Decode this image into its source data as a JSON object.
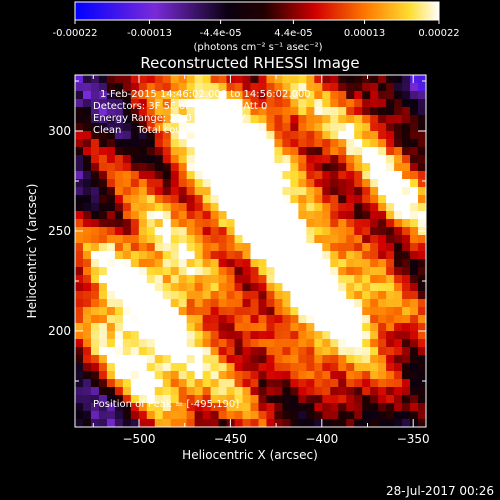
{
  "colorbar": {
    "tick_labels": [
      "-0.00022",
      "-0.00013",
      "-4.4e-05",
      "4.4e-05",
      "0.00013",
      "0.00022"
    ],
    "tick_values": [
      -0.00022,
      -0.00013,
      -4.4e-05,
      4.4e-05,
      0.00013,
      0.00022
    ],
    "range": [
      -0.00022,
      0.00022
    ],
    "unit_label": "(photons cm⁻² s⁻¹ asec⁻²)",
    "colormap": "blue-purple-black-red-orange-yellow-white"
  },
  "chart_data": {
    "type": "heatmap",
    "title": "Reconstructed RHESSI Image",
    "xlabel": "Heliocentric X (arcsec)",
    "ylabel": "Heliocentric Y (arcsec)",
    "xlim": [
      -535,
      -343
    ],
    "ylim": [
      152,
      328
    ],
    "x_ticks": [
      -500,
      -450,
      -400,
      -350
    ],
    "x_tick_labels": [
      "−500",
      "−450",
      "−400",
      "−350"
    ],
    "y_ticks": [
      200,
      250,
      300
    ],
    "y_tick_labels": [
      "200",
      "250",
      "300"
    ],
    "annotations": [
      "1-Feb-2015 14:46:02.000 to 14:56:02.000",
      "Detectors: 3F 5F 6F 7F 8F 9F, Att 0",
      "Energy Range: 25.0 - 50.0 keV",
      "Clean     Total counts: 1.15E+04"
    ],
    "peak_label": "Position of Peak = [-495,190]",
    "peak_position": [
      -495,
      190
    ],
    "grid": false
  },
  "footer": {
    "date": "28-Jul-2017 00:26"
  },
  "colors": {
    "background": "#000000",
    "foreground": "#ffffff"
  }
}
